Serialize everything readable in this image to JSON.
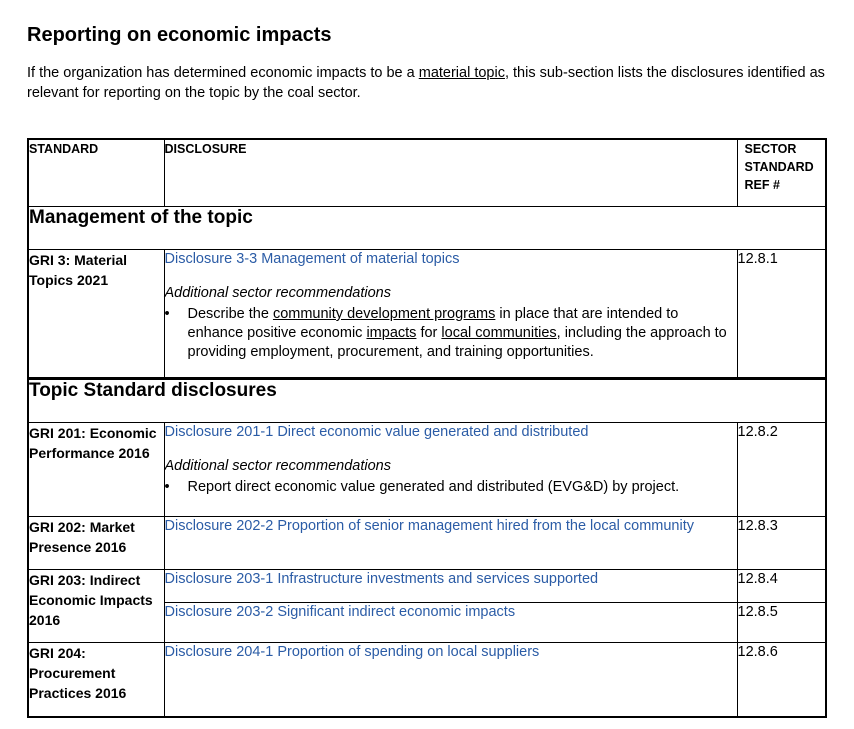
{
  "page": {
    "title": "Reporting on economic impacts",
    "intro_before": "If the organization has determined economic impacts to be a ",
    "intro_link": "material topic",
    "intro_after": ", this sub-section lists the disclosures identified as relevant for reporting on the topic by the coal sector."
  },
  "table": {
    "headers": {
      "standard": "STANDARD",
      "disclosure": "DISCLOSURE",
      "ref_line1": "SECTOR",
      "ref_line2": "STANDARD",
      "ref_line3": "REF #"
    },
    "section_management": "Management of the topic",
    "section_topic": "Topic Standard disclosures",
    "rec_label": "Additional sector recommendations",
    "bullet": "•",
    "gri3": {
      "standard": "GRI 3: Material Topics 2021",
      "disclosure": "Disclosure 3-3 Management of material topics",
      "ref": "12.8.1",
      "rec_p1": "Describe the ",
      "rec_u1": "community development programs",
      "rec_p2": " in place that are intended to enhance positive economic ",
      "rec_u2": "impacts",
      "rec_p3": " for ",
      "rec_u3": "local communities",
      "rec_p4": ", including the approach to providing employment, procurement, and training opportunities."
    },
    "gri201": {
      "standard": "GRI 201: Economic Performance 2016",
      "disclosure": "Disclosure 201-1 Direct economic value generated and distributed",
      "ref": "12.8.2",
      "rec": "Report direct economic value generated and distributed (EVG&D) by project."
    },
    "gri202": {
      "standard": "GRI 202: Market Presence 2016",
      "disclosure": "Disclosure 202-2 Proportion of senior management hired from the local community",
      "ref": "12.8.3"
    },
    "gri203": {
      "standard": "GRI 203: Indirect Economic Impacts 2016",
      "disclosure_a": "Disclosure 203-1 Infrastructure investments and services supported",
      "ref_a": "12.8.4",
      "disclosure_b": "Disclosure 203-2 Significant indirect economic impacts",
      "ref_b": "12.8.5"
    },
    "gri204": {
      "standard": "GRI 204: Procurement Practices 2016",
      "disclosure": "Disclosure 204-1 Proportion of spending on local suppliers",
      "ref": "12.8.6"
    },
    "link_color": "#2b5ca6"
  }
}
